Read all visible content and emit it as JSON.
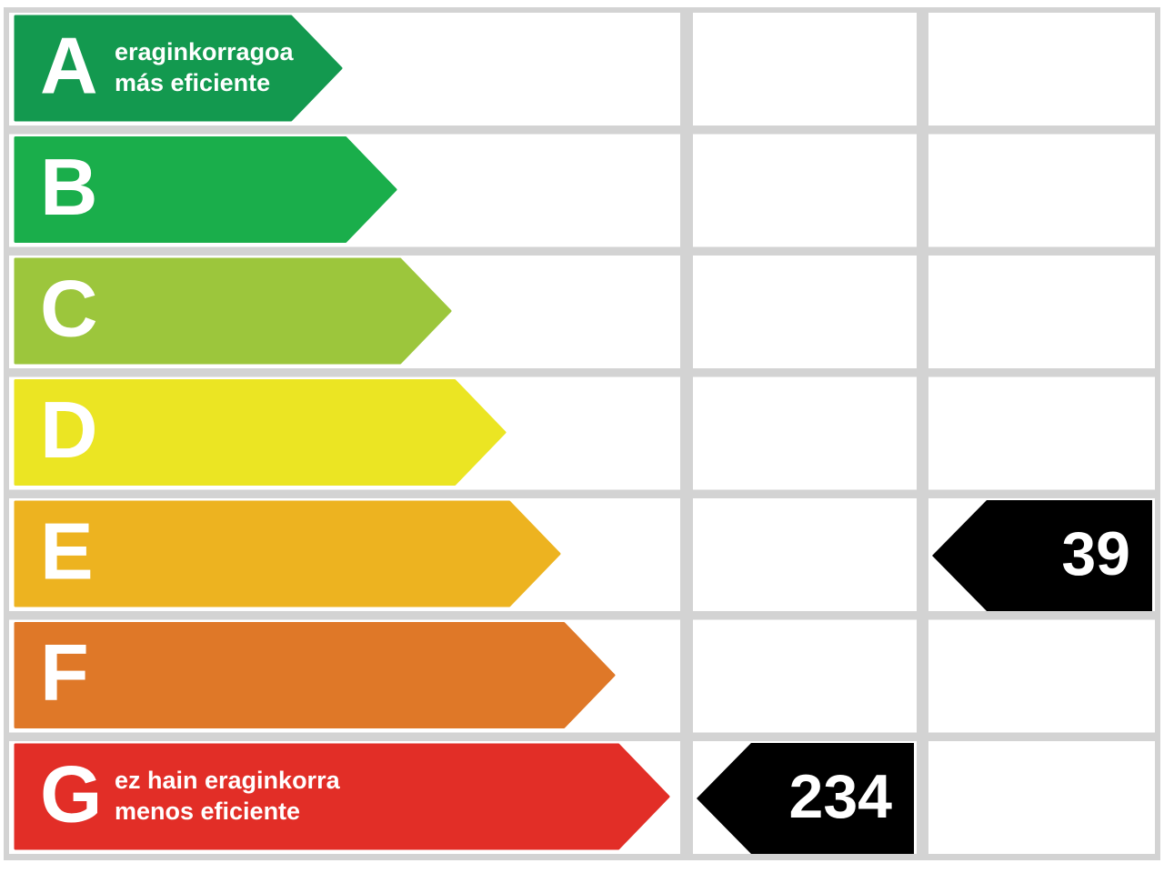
{
  "ratings": [
    {
      "letter": "A",
      "color": "#13994f",
      "lines": [
        "eraginkorragoa",
        "más eficiente"
      ]
    },
    {
      "letter": "B",
      "color": "#1aae4b"
    },
    {
      "letter": "C",
      "color": "#9cc63c"
    },
    {
      "letter": "D",
      "color": "#ebe523"
    },
    {
      "letter": "E",
      "color": "#edb320"
    },
    {
      "letter": "F",
      "color": "#df7828"
    },
    {
      "letter": "G",
      "color": "#e22e27",
      "lines": [
        "ez hain eraginkorra",
        "menos eficiente"
      ]
    }
  ],
  "indicators": [
    {
      "rating": "G",
      "value": 234
    },
    {
      "rating": "E",
      "value": 39
    }
  ]
}
